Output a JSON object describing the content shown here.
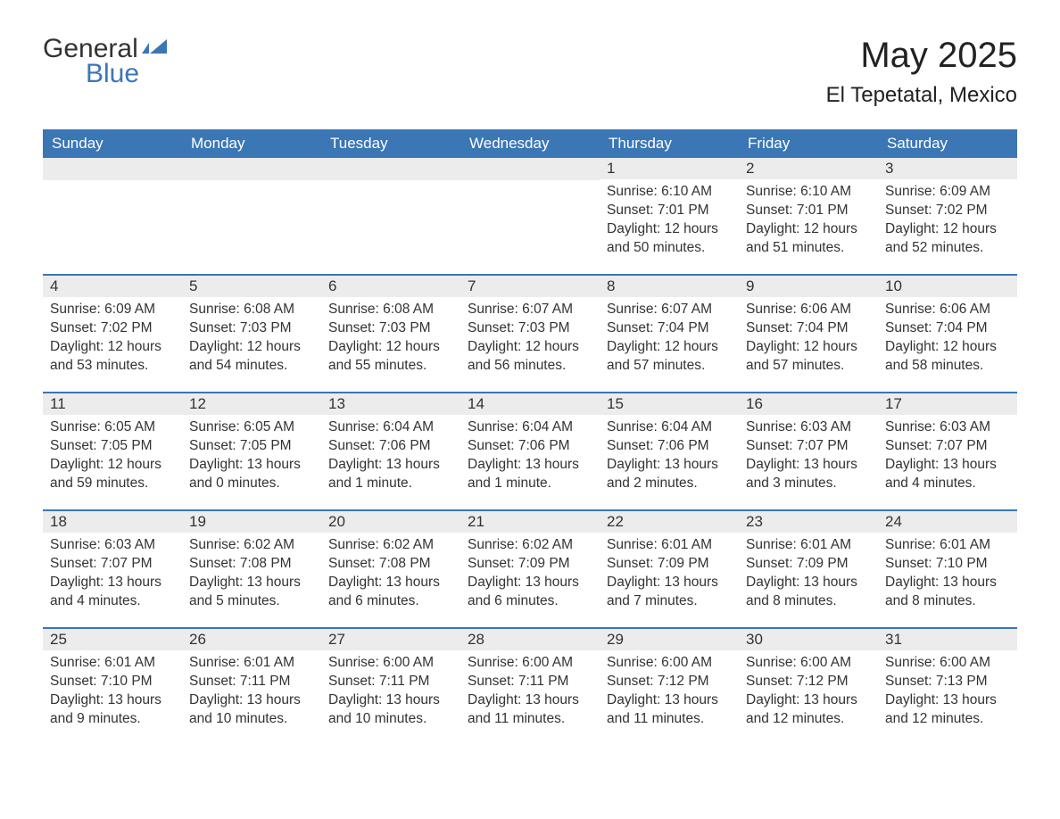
{
  "logo": {
    "word1": "General",
    "word2": "Blue",
    "icon_color": "#3b76b5"
  },
  "header": {
    "month_title": "May 2025",
    "location": "El Tepetatal, Mexico"
  },
  "colors": {
    "header_bg": "#3b76b5",
    "header_text": "#ffffff",
    "daynum_bg": "#ececec",
    "text": "#333333",
    "border": "#3b76b5"
  },
  "weekdays": [
    "Sunday",
    "Monday",
    "Tuesday",
    "Wednesday",
    "Thursday",
    "Friday",
    "Saturday"
  ],
  "weeks": [
    [
      null,
      null,
      null,
      null,
      {
        "n": "1",
        "sunrise": "6:10 AM",
        "sunset": "7:01 PM",
        "daylight": "12 hours and 50 minutes."
      },
      {
        "n": "2",
        "sunrise": "6:10 AM",
        "sunset": "7:01 PM",
        "daylight": "12 hours and 51 minutes."
      },
      {
        "n": "3",
        "sunrise": "6:09 AM",
        "sunset": "7:02 PM",
        "daylight": "12 hours and 52 minutes."
      }
    ],
    [
      {
        "n": "4",
        "sunrise": "6:09 AM",
        "sunset": "7:02 PM",
        "daylight": "12 hours and 53 minutes."
      },
      {
        "n": "5",
        "sunrise": "6:08 AM",
        "sunset": "7:03 PM",
        "daylight": "12 hours and 54 minutes."
      },
      {
        "n": "6",
        "sunrise": "6:08 AM",
        "sunset": "7:03 PM",
        "daylight": "12 hours and 55 minutes."
      },
      {
        "n": "7",
        "sunrise": "6:07 AM",
        "sunset": "7:03 PM",
        "daylight": "12 hours and 56 minutes."
      },
      {
        "n": "8",
        "sunrise": "6:07 AM",
        "sunset": "7:04 PM",
        "daylight": "12 hours and 57 minutes."
      },
      {
        "n": "9",
        "sunrise": "6:06 AM",
        "sunset": "7:04 PM",
        "daylight": "12 hours and 57 minutes."
      },
      {
        "n": "10",
        "sunrise": "6:06 AM",
        "sunset": "7:04 PM",
        "daylight": "12 hours and 58 minutes."
      }
    ],
    [
      {
        "n": "11",
        "sunrise": "6:05 AM",
        "sunset": "7:05 PM",
        "daylight": "12 hours and 59 minutes."
      },
      {
        "n": "12",
        "sunrise": "6:05 AM",
        "sunset": "7:05 PM",
        "daylight": "13 hours and 0 minutes."
      },
      {
        "n": "13",
        "sunrise": "6:04 AM",
        "sunset": "7:06 PM",
        "daylight": "13 hours and 1 minute."
      },
      {
        "n": "14",
        "sunrise": "6:04 AM",
        "sunset": "7:06 PM",
        "daylight": "13 hours and 1 minute."
      },
      {
        "n": "15",
        "sunrise": "6:04 AM",
        "sunset": "7:06 PM",
        "daylight": "13 hours and 2 minutes."
      },
      {
        "n": "16",
        "sunrise": "6:03 AM",
        "sunset": "7:07 PM",
        "daylight": "13 hours and 3 minutes."
      },
      {
        "n": "17",
        "sunrise": "6:03 AM",
        "sunset": "7:07 PM",
        "daylight": "13 hours and 4 minutes."
      }
    ],
    [
      {
        "n": "18",
        "sunrise": "6:03 AM",
        "sunset": "7:07 PM",
        "daylight": "13 hours and 4 minutes."
      },
      {
        "n": "19",
        "sunrise": "6:02 AM",
        "sunset": "7:08 PM",
        "daylight": "13 hours and 5 minutes."
      },
      {
        "n": "20",
        "sunrise": "6:02 AM",
        "sunset": "7:08 PM",
        "daylight": "13 hours and 6 minutes."
      },
      {
        "n": "21",
        "sunrise": "6:02 AM",
        "sunset": "7:09 PM",
        "daylight": "13 hours and 6 minutes."
      },
      {
        "n": "22",
        "sunrise": "6:01 AM",
        "sunset": "7:09 PM",
        "daylight": "13 hours and 7 minutes."
      },
      {
        "n": "23",
        "sunrise": "6:01 AM",
        "sunset": "7:09 PM",
        "daylight": "13 hours and 8 minutes."
      },
      {
        "n": "24",
        "sunrise": "6:01 AM",
        "sunset": "7:10 PM",
        "daylight": "13 hours and 8 minutes."
      }
    ],
    [
      {
        "n": "25",
        "sunrise": "6:01 AM",
        "sunset": "7:10 PM",
        "daylight": "13 hours and 9 minutes."
      },
      {
        "n": "26",
        "sunrise": "6:01 AM",
        "sunset": "7:11 PM",
        "daylight": "13 hours and 10 minutes."
      },
      {
        "n": "27",
        "sunrise": "6:00 AM",
        "sunset": "7:11 PM",
        "daylight": "13 hours and 10 minutes."
      },
      {
        "n": "28",
        "sunrise": "6:00 AM",
        "sunset": "7:11 PM",
        "daylight": "13 hours and 11 minutes."
      },
      {
        "n": "29",
        "sunrise": "6:00 AM",
        "sunset": "7:12 PM",
        "daylight": "13 hours and 11 minutes."
      },
      {
        "n": "30",
        "sunrise": "6:00 AM",
        "sunset": "7:12 PM",
        "daylight": "13 hours and 12 minutes."
      },
      {
        "n": "31",
        "sunrise": "6:00 AM",
        "sunset": "7:13 PM",
        "daylight": "13 hours and 12 minutes."
      }
    ]
  ],
  "labels": {
    "sunrise": "Sunrise: ",
    "sunset": "Sunset: ",
    "daylight": "Daylight: "
  }
}
